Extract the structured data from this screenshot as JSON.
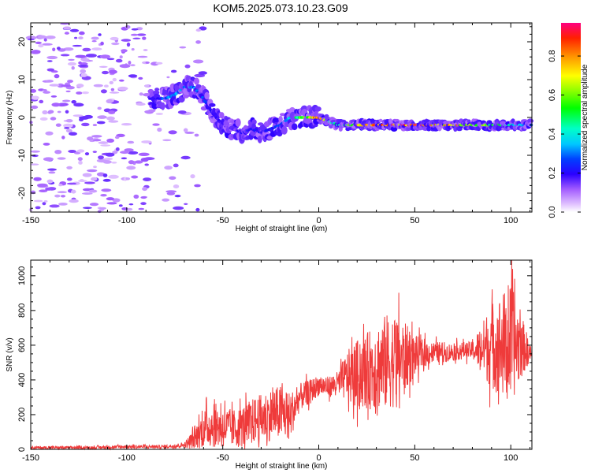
{
  "title": "KOM5.2025.073.10.23.G09",
  "chart_data": [
    {
      "type": "heatmap",
      "xlabel": "Height of straight line (km)",
      "ylabel": "Frequency (Hz)",
      "xlim": [
        -150,
        111
      ],
      "ylim": [
        -25,
        25
      ],
      "x_ticks": [
        -150,
        -100,
        -50,
        0,
        50,
        100
      ],
      "y_ticks": [
        -20,
        -10,
        0,
        10,
        20
      ],
      "x_tick_labels": [
        "-150",
        "-100",
        "-50",
        "0",
        "50",
        "100"
      ],
      "y_tick_labels": [
        "-20",
        "-10",
        "0",
        "10",
        "20"
      ],
      "colorbar": {
        "label": "Normalized spectral amplitude",
        "range": [
          0,
          0.97
        ],
        "ticks": [
          0,
          0.2,
          0.4,
          0.6,
          0.8
        ],
        "tick_labels": [
          "0.0",
          "0.2",
          "0.4",
          "0.6",
          "0.8"
        ]
      },
      "ridge": {
        "x": [
          -85,
          -80,
          -75,
          -70,
          -65,
          -60,
          -55,
          -50,
          -45,
          -40,
          -35,
          -30,
          -25,
          -20,
          -15,
          -10,
          -5,
          0,
          5,
          10,
          20,
          30,
          40,
          50,
          60,
          70,
          80,
          90,
          100,
          110
        ],
        "y": [
          5,
          5,
          6,
          8,
          8,
          5,
          1,
          -2,
          -3,
          -4,
          -3,
          -4,
          -3,
          -2,
          0,
          0,
          0,
          0,
          -1,
          -2,
          -2,
          -2,
          -2,
          -2,
          -2,
          -2,
          -2,
          -2,
          -2,
          -2
        ],
        "amplitude": [
          0.22,
          0.3,
          0.35,
          0.3,
          0.33,
          0.27,
          0.2,
          0.18,
          0.15,
          0.22,
          0.25,
          0.22,
          0.25,
          0.3,
          0.4,
          0.55,
          0.75,
          0.9,
          0.5,
          0.45,
          0.75,
          0.85,
          0.9,
          0.95,
          0.85,
          0.8,
          0.75,
          0.6,
          0.45,
          0.3
        ]
      }
    },
    {
      "type": "line",
      "xlabel": "Height of straight line (km)",
      "ylabel": "SNR (v/v)",
      "xlim": [
        -150,
        111
      ],
      "ylim": [
        0,
        1090
      ],
      "x_ticks": [
        -150,
        -100,
        -50,
        0,
        50,
        100
      ],
      "y_ticks": [
        0,
        200,
        400,
        600,
        800,
        1000
      ],
      "x_tick_labels": [
        "-150",
        "-100",
        "-50",
        "0",
        "50",
        "100"
      ],
      "y_tick_labels": [
        "0",
        "200",
        "400",
        "600",
        "800",
        "1000"
      ],
      "color": "#ef3b3b",
      "envelope": {
        "x": [
          -150,
          -120,
          -100,
          -80,
          -70,
          -65,
          -60,
          -55,
          -50,
          -45,
          -40,
          -35,
          -30,
          -25,
          -20,
          -15,
          -10,
          -5,
          0,
          5,
          10,
          15,
          20,
          25,
          30,
          35,
          40,
          45,
          50,
          55,
          60,
          65,
          70,
          75,
          80,
          85,
          90,
          95,
          100,
          105,
          111
        ],
        "mean": [
          10,
          10,
          15,
          15,
          25,
          60,
          120,
          140,
          130,
          120,
          130,
          160,
          180,
          200,
          210,
          190,
          300,
          330,
          370,
          360,
          380,
          420,
          430,
          450,
          480,
          500,
          520,
          530,
          540,
          550,
          560,
          560,
          560,
          570,
          570,
          580,
          600,
          600,
          600,
          600,
          550
        ],
        "spread": [
          8,
          8,
          10,
          10,
          15,
          60,
          110,
          130,
          120,
          110,
          120,
          130,
          140,
          150,
          160,
          140,
          80,
          70,
          60,
          60,
          70,
          150,
          200,
          220,
          250,
          280,
          270,
          200,
          120,
          80,
          60,
          60,
          50,
          50,
          50,
          150,
          250,
          300,
          350,
          200,
          20
        ]
      }
    }
  ]
}
